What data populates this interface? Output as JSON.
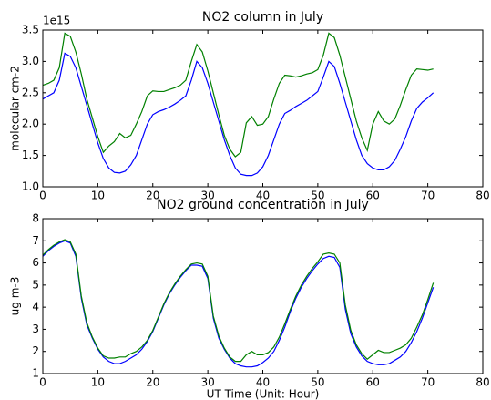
{
  "chart_data": [
    {
      "type": "line",
      "title": "NO2 column in July",
      "ylabel": "molecular cm-2",
      "offset_label": "1e15",
      "x": [
        0,
        1,
        2,
        3,
        4,
        5,
        6,
        7,
        8,
        9,
        10,
        11,
        12,
        13,
        14,
        15,
        16,
        17,
        18,
        19,
        20,
        21,
        22,
        23,
        24,
        25,
        26,
        27,
        28,
        29,
        30,
        31,
        32,
        33,
        34,
        35,
        36,
        37,
        38,
        39,
        40,
        41,
        42,
        43,
        44,
        45,
        46,
        47,
        48,
        49,
        50,
        51,
        52,
        53,
        54,
        55,
        56,
        57,
        58,
        59,
        60,
        61,
        62,
        63,
        64,
        65,
        66,
        67,
        68,
        69,
        70,
        71
      ],
      "series": [
        {
          "color": "#0000ff",
          "values": [
            2.4,
            2.45,
            2.5,
            2.7,
            3.13,
            3.08,
            2.9,
            2.6,
            2.3,
            2.0,
            1.7,
            1.45,
            1.3,
            1.23,
            1.22,
            1.25,
            1.35,
            1.5,
            1.75,
            2.0,
            2.15,
            2.2,
            2.23,
            2.27,
            2.32,
            2.38,
            2.45,
            2.7,
            3.0,
            2.9,
            2.65,
            2.35,
            2.05,
            1.75,
            1.5,
            1.3,
            1.2,
            1.18,
            1.18,
            1.22,
            1.32,
            1.5,
            1.75,
            2.0,
            2.17,
            2.22,
            2.28,
            2.33,
            2.38,
            2.45,
            2.52,
            2.75,
            3.0,
            2.92,
            2.65,
            2.35,
            2.05,
            1.75,
            1.5,
            1.37,
            1.3,
            1.27,
            1.27,
            1.32,
            1.42,
            1.6,
            1.8,
            2.05,
            2.25,
            2.35,
            2.42,
            2.5
          ]
        },
        {
          "color": "#008000",
          "values": [
            2.62,
            2.65,
            2.7,
            2.9,
            3.45,
            3.4,
            3.15,
            2.8,
            2.4,
            2.1,
            1.8,
            1.55,
            1.65,
            1.72,
            1.85,
            1.78,
            1.82,
            2.0,
            2.2,
            2.45,
            2.53,
            2.52,
            2.52,
            2.55,
            2.58,
            2.62,
            2.7,
            3.0,
            3.27,
            3.15,
            2.85,
            2.5,
            2.15,
            1.82,
            1.6,
            1.48,
            1.55,
            2.02,
            2.12,
            1.98,
            2.0,
            2.12,
            2.4,
            2.65,
            2.78,
            2.77,
            2.75,
            2.77,
            2.8,
            2.82,
            2.87,
            3.1,
            3.45,
            3.38,
            3.1,
            2.75,
            2.4,
            2.05,
            1.78,
            1.58,
            2.0,
            2.2,
            2.05,
            2.0,
            2.08,
            2.3,
            2.55,
            2.78,
            2.88,
            2.87,
            2.86,
            2.88
          ]
        }
      ],
      "xlim": [
        0,
        80
      ],
      "xticks": [
        0,
        10,
        20,
        30,
        40,
        50,
        60,
        70,
        80
      ],
      "ylim": [
        1,
        3.5
      ],
      "yticks": [
        {
          "value": 1,
          "label": "1.0"
        },
        1.5,
        {
          "value": 2,
          "label": "2.0"
        },
        2.5,
        {
          "value": 3,
          "label": "3.0"
        },
        3.5
      ]
    },
    {
      "type": "line",
      "title": "NO2 ground concentration in July",
      "ylabel": "ug m-3",
      "xlabel": "UT Time (Unit: Hour)",
      "x": [
        0,
        1,
        2,
        3,
        4,
        5,
        6,
        7,
        8,
        9,
        10,
        11,
        12,
        13,
        14,
        15,
        16,
        17,
        18,
        19,
        20,
        21,
        22,
        23,
        24,
        25,
        26,
        27,
        28,
        29,
        30,
        31,
        32,
        33,
        34,
        35,
        36,
        37,
        38,
        39,
        40,
        41,
        42,
        43,
        44,
        45,
        46,
        47,
        48,
        49,
        50,
        51,
        52,
        53,
        54,
        55,
        56,
        57,
        58,
        59,
        60,
        61,
        62,
        63,
        64,
        65,
        66,
        67,
        68,
        69,
        70,
        71
      ],
      "series": [
        {
          "color": "#0000ff",
          "values": [
            6.3,
            6.55,
            6.75,
            6.9,
            7.0,
            6.9,
            6.3,
            4.4,
            3.2,
            2.6,
            2.1,
            1.75,
            1.55,
            1.45,
            1.45,
            1.55,
            1.7,
            1.85,
            2.1,
            2.45,
            2.9,
            3.5,
            4.1,
            4.6,
            5.0,
            5.35,
            5.65,
            5.9,
            5.9,
            5.85,
            5.3,
            3.5,
            2.6,
            2.1,
            1.7,
            1.45,
            1.35,
            1.3,
            1.3,
            1.35,
            1.5,
            1.7,
            2.0,
            2.5,
            3.1,
            3.8,
            4.4,
            4.9,
            5.3,
            5.65,
            5.95,
            6.2,
            6.3,
            6.25,
            5.8,
            3.9,
            2.8,
            2.2,
            1.8,
            1.55,
            1.45,
            1.4,
            1.4,
            1.45,
            1.6,
            1.75,
            2.0,
            2.4,
            2.9,
            3.5,
            4.2,
            4.9
          ]
        },
        {
          "color": "#008000",
          "values": [
            6.35,
            6.6,
            6.8,
            6.95,
            7.05,
            6.95,
            6.4,
            4.5,
            3.3,
            2.65,
            2.15,
            1.8,
            1.7,
            1.7,
            1.75,
            1.75,
            1.9,
            2.0,
            2.2,
            2.5,
            2.95,
            3.55,
            4.15,
            4.65,
            5.05,
            5.4,
            5.7,
            5.95,
            6.0,
            5.95,
            5.4,
            3.6,
            2.7,
            2.15,
            1.75,
            1.55,
            1.55,
            1.85,
            2.0,
            1.85,
            1.85,
            1.95,
            2.2,
            2.65,
            3.25,
            3.9,
            4.5,
            5.0,
            5.4,
            5.75,
            6.05,
            6.4,
            6.45,
            6.4,
            6.0,
            4.1,
            2.95,
            2.3,
            1.9,
            1.65,
            1.85,
            2.05,
            1.95,
            1.95,
            2.05,
            2.15,
            2.3,
            2.6,
            3.1,
            3.65,
            4.35,
            5.1
          ]
        }
      ],
      "xlim": [
        0,
        80
      ],
      "xticks": [
        0,
        10,
        20,
        30,
        40,
        50,
        60,
        70,
        80
      ],
      "ylim": [
        1,
        8
      ],
      "yticks": [
        1,
        2,
        3,
        4,
        5,
        6,
        7,
        8
      ]
    }
  ]
}
